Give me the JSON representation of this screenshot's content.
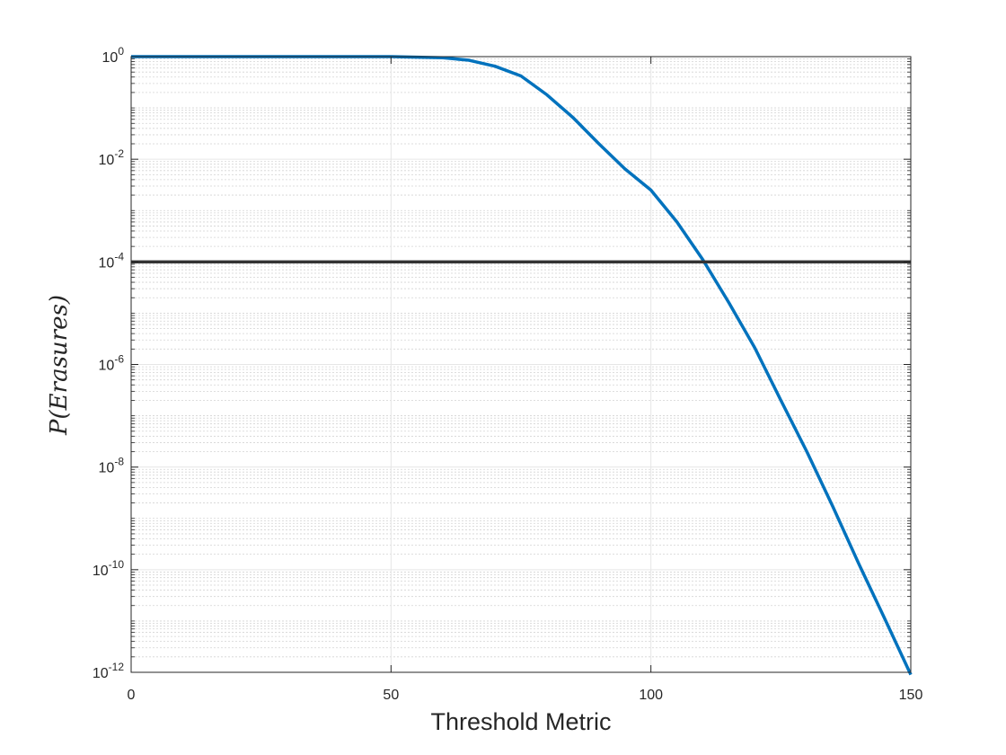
{
  "chart_data": {
    "type": "line",
    "title": "",
    "xlabel": "Threshold Metric",
    "ylabel": "P(Erasures)",
    "xlim": [
      0,
      150
    ],
    "ylim": [
      1e-12,
      1
    ],
    "yscale": "log",
    "grid": "on (major and minor)",
    "x_ticks": [
      0,
      50,
      100,
      150
    ],
    "y_ticks": [
      {
        "value": 1e-12,
        "base": "10",
        "exp": "-12"
      },
      {
        "value": 1e-10,
        "base": "10",
        "exp": "-10"
      },
      {
        "value": 1e-08,
        "base": "10",
        "exp": "-8"
      },
      {
        "value": 1e-06,
        "base": "10",
        "exp": "-6"
      },
      {
        "value": 0.0001,
        "base": "10",
        "exp": "-4"
      },
      {
        "value": 0.01,
        "base": "10",
        "exp": "-2"
      },
      {
        "value": 1,
        "base": "10",
        "exp": "0"
      }
    ],
    "series": [
      {
        "color": "#0072bd",
        "x": [
          0,
          50,
          60,
          65,
          70,
          75,
          80,
          85,
          90,
          95,
          100,
          105,
          110,
          115,
          120,
          125,
          130,
          135,
          140,
          145,
          150
        ],
        "y": [
          1,
          1,
          0.95,
          0.85,
          0.65,
          0.42,
          0.18,
          0.065,
          0.02,
          0.0065,
          0.0025,
          0.0006,
          0.00011,
          1.6e-05,
          2.1e-06,
          2e-07,
          2e-08,
          1.7e-09,
          1.3e-10,
          1.1e-11,
          9e-13
        ]
      },
      {
        "color": "#333333",
        "x": [
          0,
          150
        ],
        "y": [
          0.0001,
          0.0001
        ]
      }
    ]
  }
}
